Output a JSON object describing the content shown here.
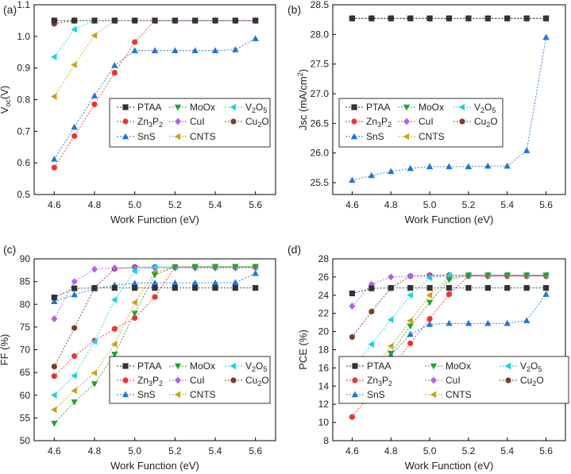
{
  "chart_data": [
    {
      "type": "line",
      "panel": "(a)",
      "xlabel": "Work Function (eV)",
      "ylabel_main": "V",
      "ylabel_sub": "oc",
      "ylabel_tail": "(V)",
      "xlim": [
        4.5,
        5.7
      ],
      "ylim": [
        0.5,
        1.1
      ],
      "xticks": [
        4.6,
        4.8,
        5.0,
        5.2,
        5.4,
        5.6
      ],
      "yticks": [
        0.5,
        0.6,
        0.7,
        0.8,
        0.9,
        1.0,
        1.1
      ],
      "ytick_decimals": 1,
      "x": [
        4.6,
        4.7,
        4.8,
        4.9,
        5.0,
        5.1,
        5.2,
        5.3,
        5.4,
        5.5,
        5.6
      ],
      "series": [
        {
          "name": "PTAA",
          "values": [
            1.05,
            1.05,
            1.05,
            1.05,
            1.05,
            1.05,
            1.05,
            1.05,
            1.05,
            1.05,
            1.05
          ]
        },
        {
          "name": "MoOx",
          "values": [
            1.05,
            1.05,
            1.05,
            1.05,
            1.05,
            1.05,
            1.05,
            1.05,
            1.05,
            1.05,
            1.05
          ]
        },
        {
          "name": "V2O5",
          "values": [
            0.935,
            1.022,
            1.05,
            1.05,
            1.05,
            1.05,
            1.05,
            1.05,
            1.05,
            1.05,
            1.05
          ]
        },
        {
          "name": "Zn3P2",
          "values": [
            0.585,
            0.685,
            0.785,
            0.885,
            0.982,
            1.05,
            1.05,
            1.05,
            1.05,
            1.05,
            1.05
          ]
        },
        {
          "name": "CuI",
          "values": [
            1.05,
            1.05,
            1.05,
            1.05,
            1.05,
            1.05,
            1.05,
            1.05,
            1.05,
            1.05,
            1.05
          ]
        },
        {
          "name": "Cu2O",
          "values": [
            1.04,
            1.05,
            1.05,
            1.05,
            1.05,
            1.05,
            1.05,
            1.05,
            1.05,
            1.05,
            1.05
          ]
        },
        {
          "name": "SnS",
          "values": [
            0.612,
            0.713,
            0.812,
            0.908,
            0.955,
            0.955,
            0.955,
            0.955,
            0.955,
            0.958,
            0.993
          ]
        },
        {
          "name": "CNTS",
          "values": [
            0.81,
            0.91,
            1.003,
            1.05,
            1.05,
            1.05,
            1.05,
            1.05,
            1.05,
            1.05,
            1.05
          ]
        }
      ]
    },
    {
      "type": "line",
      "panel": "(b)",
      "xlabel": "Work Function (eV)",
      "ylabel_main": "Jsc (mA/cm",
      "ylabel_sup": "2",
      "ylabel_tail": ")",
      "xlim": [
        4.5,
        5.7
      ],
      "ylim": [
        25.3,
        28.5
      ],
      "xticks": [
        4.6,
        4.8,
        5.0,
        5.2,
        5.4,
        5.6
      ],
      "yticks": [
        25.5,
        26.0,
        26.5,
        27.0,
        27.5,
        28.0,
        28.5
      ],
      "ytick_decimals": 1,
      "x": [
        4.6,
        4.7,
        4.8,
        4.9,
        5.0,
        5.1,
        5.2,
        5.3,
        5.4,
        5.5,
        5.6
      ],
      "series": [
        {
          "name": "PTAA",
          "values": [
            28.27,
            28.27,
            28.27,
            28.27,
            28.27,
            28.27,
            28.27,
            28.27,
            28.27,
            28.27,
            28.27
          ]
        },
        {
          "name": "MoOx",
          "values": [
            28.27,
            28.27,
            28.27,
            28.27,
            28.27,
            28.27,
            28.27,
            28.27,
            28.27,
            28.27,
            28.27
          ]
        },
        {
          "name": "V2O5",
          "values": [
            28.27,
            28.27,
            28.27,
            28.27,
            28.27,
            28.27,
            28.27,
            28.27,
            28.27,
            28.27,
            28.27
          ]
        },
        {
          "name": "Zn3P2",
          "values": [
            28.27,
            28.27,
            28.27,
            28.27,
            28.27,
            28.27,
            28.27,
            28.27,
            28.27,
            28.27,
            28.27
          ]
        },
        {
          "name": "CuI",
          "values": [
            28.27,
            28.27,
            28.27,
            28.27,
            28.27,
            28.27,
            28.27,
            28.27,
            28.27,
            28.27,
            28.27
          ]
        },
        {
          "name": "Cu2O",
          "values": [
            28.27,
            28.27,
            28.27,
            28.27,
            28.27,
            28.27,
            28.27,
            28.27,
            28.27,
            28.27,
            28.27
          ]
        },
        {
          "name": "SnS",
          "values": [
            25.54,
            25.62,
            25.69,
            25.74,
            25.77,
            25.77,
            25.77,
            25.78,
            25.78,
            26.04,
            27.95
          ]
        },
        {
          "name": "CNTS",
          "values": [
            28.27,
            28.27,
            28.27,
            28.27,
            28.27,
            28.27,
            28.27,
            28.27,
            28.27,
            28.27,
            28.27
          ]
        }
      ]
    },
    {
      "type": "line",
      "panel": "(c)",
      "xlabel": "Work Function (eV)",
      "ylabel_main": "FF (%)",
      "xlim": [
        4.5,
        5.7
      ],
      "ylim": [
        50,
        90
      ],
      "xticks": [
        4.6,
        4.8,
        5.0,
        5.2,
        5.4,
        5.6
      ],
      "yticks": [
        50,
        55,
        60,
        65,
        70,
        75,
        80,
        85,
        90
      ],
      "ytick_decimals": 0,
      "x": [
        4.6,
        4.7,
        4.8,
        4.9,
        5.0,
        5.1,
        5.2,
        5.3,
        5.4,
        5.5,
        5.6
      ],
      "series": [
        {
          "name": "PTAA",
          "values": [
            81.5,
            83.5,
            83.6,
            83.6,
            83.6,
            83.6,
            83.6,
            83.6,
            83.6,
            83.6,
            83.6
          ]
        },
        {
          "name": "MoOx",
          "values": [
            53.8,
            58.5,
            62.5,
            69.0,
            78.0,
            86.5,
            88.2,
            88.3,
            88.3,
            88.3,
            88.3
          ]
        },
        {
          "name": "V2O5",
          "values": [
            60.0,
            64.3,
            71.8,
            81.0,
            87.3,
            88.2,
            88.2,
            88.2,
            88.2,
            88.2,
            88.2
          ]
        },
        {
          "name": "Zn3P2",
          "values": [
            64.2,
            68.6,
            72.0,
            74.6,
            77.0,
            81.6,
            88.2,
            88.2,
            88.2,
            88.2,
            88.2
          ]
        },
        {
          "name": "CuI",
          "values": [
            76.8,
            85.0,
            87.7,
            88.0,
            88.0,
            88.0,
            88.0,
            88.0,
            88.0,
            88.0,
            88.0
          ]
        },
        {
          "name": "Cu2O",
          "values": [
            66.3,
            74.8,
            83.6,
            87.8,
            88.2,
            88.2,
            88.2,
            88.2,
            88.2,
            88.2,
            88.2
          ]
        },
        {
          "name": "SnS",
          "values": [
            80.6,
            82.1,
            83.4,
            84.2,
            84.6,
            84.7,
            84.7,
            84.7,
            84.7,
            84.8,
            86.8
          ]
        },
        {
          "name": "CNTS",
          "values": [
            56.8,
            61.0,
            64.9,
            71.2,
            80.4,
            87.1,
            88.2,
            88.2,
            88.2,
            88.2,
            88.2
          ]
        }
      ]
    },
    {
      "type": "line",
      "panel": "(d)",
      "xlabel": "Work Function (eV)",
      "ylabel_main": "PCE (%)",
      "xlim": [
        4.5,
        5.7
      ],
      "ylim": [
        8,
        28
      ],
      "xticks": [
        4.6,
        4.8,
        5.0,
        5.2,
        5.4,
        5.6
      ],
      "yticks": [
        8,
        10,
        12,
        14,
        16,
        18,
        20,
        22,
        24,
        26,
        28
      ],
      "ytick_decimals": 0,
      "x": [
        4.6,
        4.7,
        4.8,
        4.9,
        5.0,
        5.1,
        5.2,
        5.3,
        5.4,
        5.5,
        5.6
      ],
      "series": [
        {
          "name": "PTAA",
          "values": [
            24.2,
            24.75,
            24.8,
            24.8,
            24.8,
            24.8,
            24.8,
            24.8,
            24.8,
            24.8,
            24.8
          ]
        },
        {
          "name": "MoOx",
          "values": [
            12.5,
            15.0,
            17.6,
            20.6,
            23.2,
            25.7,
            26.2,
            26.2,
            26.2,
            26.2,
            26.2
          ]
        },
        {
          "name": "V2O5",
          "values": [
            15.9,
            18.6,
            21.3,
            24.0,
            25.9,
            26.2,
            26.2,
            26.2,
            26.2,
            26.2,
            26.2
          ]
        },
        {
          "name": "Zn3P2",
          "values": [
            10.6,
            13.3,
            15.9,
            18.7,
            21.4,
            24.1,
            26.1,
            26.1,
            26.1,
            26.1,
            26.1
          ]
        },
        {
          "name": "CuI",
          "values": [
            22.8,
            25.2,
            26.0,
            26.1,
            26.1,
            26.1,
            26.1,
            26.1,
            26.1,
            26.1,
            26.1
          ]
        },
        {
          "name": "Cu2O",
          "values": [
            19.4,
            22.2,
            24.8,
            26.1,
            26.2,
            26.2,
            26.2,
            26.2,
            26.2,
            26.2,
            26.2
          ]
        },
        {
          "name": "SnS",
          "values": [
            12.6,
            15.0,
            17.4,
            19.7,
            20.8,
            20.9,
            20.9,
            20.9,
            20.9,
            21.2,
            24.1
          ]
        },
        {
          "name": "CNTS",
          "values": [
            13.0,
            15.7,
            18.4,
            21.2,
            24.0,
            25.9,
            26.2,
            26.2,
            26.2,
            26.2,
            26.2
          ]
        }
      ]
    }
  ],
  "legend": [
    {
      "name": "PTAA",
      "label": "PTAA",
      "color": "#333333",
      "marker": "square"
    },
    {
      "name": "MoOx",
      "label": "MoOx",
      "color": "#2ca02c",
      "marker": "triangle-down"
    },
    {
      "name": "V2O5",
      "label_parts": [
        "V",
        "2",
        "O",
        "5"
      ],
      "color": "#17d4e6",
      "marker": "triangle-left"
    },
    {
      "name": "Zn3P2",
      "label_parts": [
        "Zn",
        "3",
        "P",
        "2"
      ],
      "color": "#e8372f",
      "marker": "circle"
    },
    {
      "name": "CuI",
      "label": "CuI",
      "color": "#b45fe8",
      "marker": "diamond"
    },
    {
      "name": "Cu2O",
      "label_parts": [
        "Cu",
        "2",
        "O"
      ],
      "color": "#7b3b2e",
      "marker": "hexagon"
    },
    {
      "name": "SnS",
      "label": "SnS",
      "color": "#1f77d4",
      "marker": "triangle-up"
    },
    {
      "name": "CNTS",
      "label": "CNTS",
      "color": "#c9a21a",
      "marker": "triangle-left"
    }
  ]
}
